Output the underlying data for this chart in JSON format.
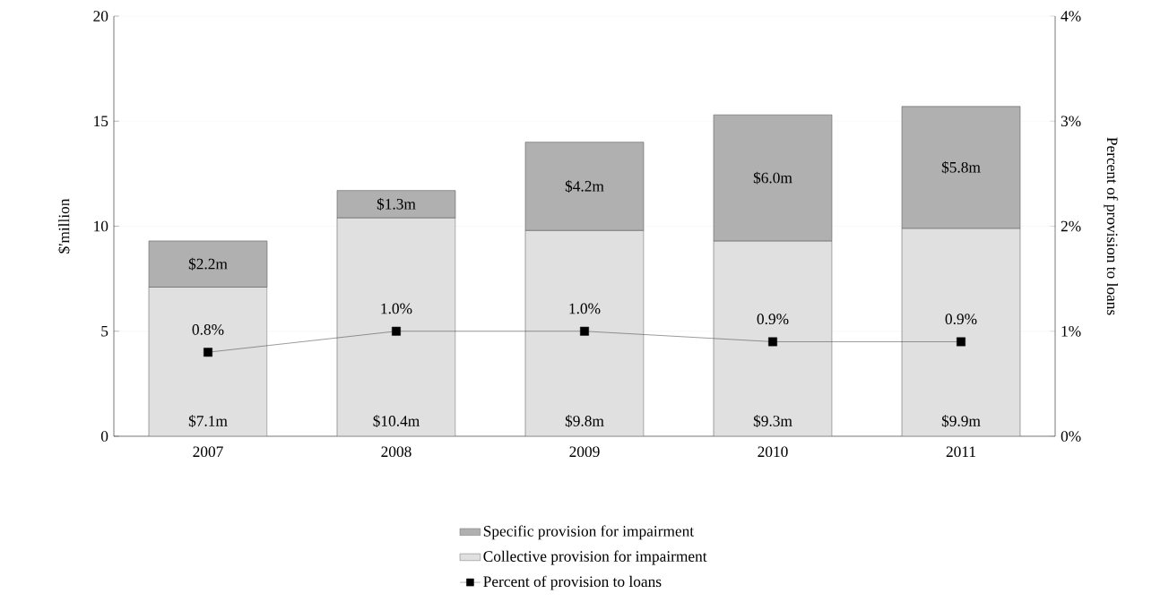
{
  "chart_data": {
    "type": "bar",
    "stacked": true,
    "categories": [
      "2007",
      "2008",
      "2009",
      "2010",
      "2011"
    ],
    "ylabel": "$'million",
    "y2label": "Percent of provision to loans",
    "ylim": [
      0,
      20
    ],
    "yticks": [
      0,
      5,
      10,
      15,
      20
    ],
    "y2lim": [
      0,
      4
    ],
    "y2ticks": [
      {
        "value": 0,
        "label": "0%"
      },
      {
        "value": 1,
        "label": "1%"
      },
      {
        "value": 2,
        "label": "2%"
      },
      {
        "value": 3,
        "label": "3%"
      },
      {
        "value": 4,
        "label": "4%"
      }
    ],
    "grid": "y",
    "legend": "bottom",
    "series": [
      {
        "name": "Collective provision for impairment",
        "color": "#e0e0e0",
        "values": [
          7.1,
          10.4,
          9.8,
          9.3,
          9.9
        ],
        "value_labels": [
          "$7.1m",
          "$10.4m",
          "$9.8m",
          "$9.3m",
          "$9.9m"
        ]
      },
      {
        "name": "Specific provision for impairment",
        "color": "#b0b0b0",
        "values": [
          2.2,
          1.3,
          4.2,
          6.0,
          5.8
        ],
        "value_labels": [
          "$2.2m",
          "$1.3m",
          "$4.2m",
          "$6.0m",
          "$5.8m"
        ]
      },
      {
        "name": "Percent of provision to loans",
        "type": "line",
        "axis": "y2",
        "color": "#000000",
        "marker": "square",
        "line_style": "solid",
        "values": [
          0.8,
          1.0,
          1.0,
          0.9,
          0.9
        ],
        "value_labels": [
          "0.8%",
          "1.0%",
          "1.0%",
          "0.9%",
          "0.9%"
        ]
      }
    ]
  }
}
